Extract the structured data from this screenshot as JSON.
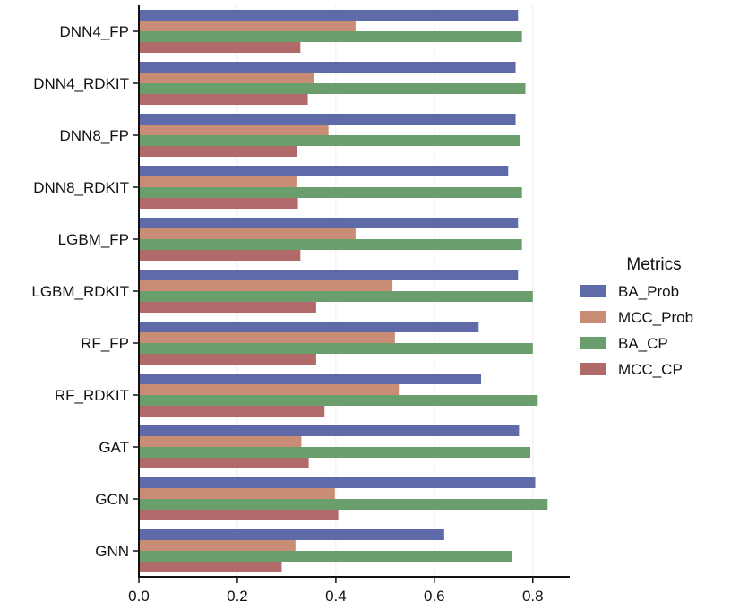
{
  "chart_data": {
    "type": "bar",
    "orientation": "horizontal",
    "categories": [
      "DNN4_FP",
      "DNN4_RDKIT",
      "DNN8_FP",
      "DNN8_RDKIT",
      "LGBM_FP",
      "LGBM_RDKIT",
      "RF_FP",
      "RF_RDKIT",
      "GAT",
      "GCN",
      "GNN"
    ],
    "series": [
      {
        "name": "BA_Prob",
        "color": "#5f6ba8",
        "values": [
          0.77,
          0.765,
          0.765,
          0.75,
          0.77,
          0.77,
          0.69,
          0.695,
          0.772,
          0.805,
          0.62
        ]
      },
      {
        "name": "MCC_Prob",
        "color": "#c98c74",
        "values": [
          0.44,
          0.355,
          0.385,
          0.32,
          0.44,
          0.515,
          0.52,
          0.528,
          0.33,
          0.398,
          0.318
        ]
      },
      {
        "name": "BA_CP",
        "color": "#6a9e6c",
        "values": [
          0.778,
          0.785,
          0.775,
          0.778,
          0.778,
          0.8,
          0.8,
          0.81,
          0.795,
          0.83,
          0.758
        ]
      },
      {
        "name": "MCC_CP",
        "color": "#b06a6a",
        "values": [
          0.328,
          0.343,
          0.322,
          0.323,
          0.328,
          0.36,
          0.36,
          0.377,
          0.345,
          0.405,
          0.29
        ]
      }
    ],
    "xticks": [
      "0.0",
      "0.2",
      "0.4",
      "0.6",
      "0.8"
    ],
    "xlim": [
      0,
      0.875
    ],
    "xlabel": "",
    "ylabel": "",
    "title": "",
    "grid": "vertical",
    "legend": {
      "title": "Metrics",
      "placement": "right"
    }
  }
}
